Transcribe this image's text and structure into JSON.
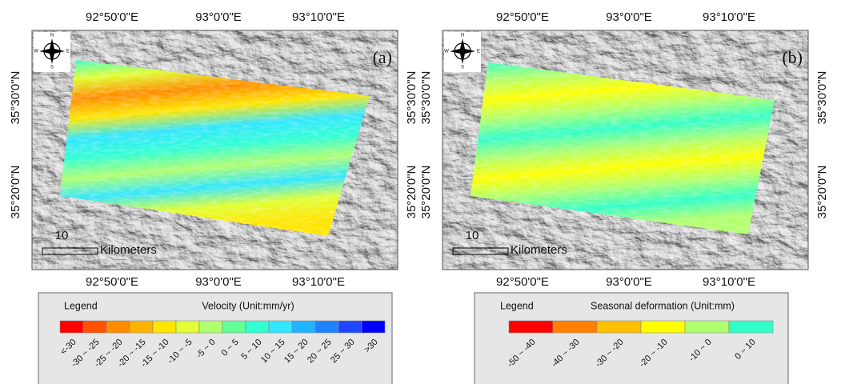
{
  "panels": [
    {
      "label": "(a)",
      "top_ticks": [
        "92°50'0\"E",
        "93°0'0\"E",
        "93°10'0\"E"
      ],
      "bottom_ticks": [
        "92°50'0\"E",
        "93°0'0\"E",
        "93°10'0\"E"
      ],
      "left_ticks": [
        "35°30'0\"N",
        "35°20'0\"N"
      ],
      "right_ticks": [
        "35°30'0\"N",
        "35°20'0\"N"
      ],
      "compass": [
        "N",
        "E",
        "S",
        "W"
      ],
      "scale_value": "10",
      "scale_unit": "Kilometers",
      "legend": {
        "heading": "Legend",
        "title": "Velocity (Unit:mm/yr)",
        "classes": [
          {
            "label": "<-30",
            "color": "#ff0000"
          },
          {
            "label": "-30 ~ -25",
            "color": "#ff5000"
          },
          {
            "label": "-25 ~ -20",
            "color": "#ff8c00"
          },
          {
            "label": "-20 ~ -15",
            "color": "#ffb400"
          },
          {
            "label": "-15 ~ -10",
            "color": "#ffe600"
          },
          {
            "label": "-10 ~ -5",
            "color": "#e1ff32"
          },
          {
            "label": "-5 ~ 0",
            "color": "#b0ff6e"
          },
          {
            "label": "0 ~ 5",
            "color": "#64ff96"
          },
          {
            "label": "5 ~ 10",
            "color": "#32ffd2"
          },
          {
            "label": "10 ~ 15",
            "color": "#32e6ff"
          },
          {
            "label": "15 ~ 20",
            "color": "#1eb4ff"
          },
          {
            "label": "20 ~ 25",
            "color": "#1e82ff"
          },
          {
            "label": "25 ~ 30",
            "color": "#1e46ff"
          },
          {
            "label": ">30",
            "color": "#0000ff"
          }
        ]
      }
    },
    {
      "label": "(b)",
      "top_ticks": [
        "92°50'0\"E",
        "93°0'0\"E",
        "93°10'0\"E"
      ],
      "bottom_ticks": [
        "92°50'0\"E",
        "93°0'0\"E",
        "93°10'0\"E"
      ],
      "left_ticks": [
        "35°30'0\"N",
        "35°20'0\"N"
      ],
      "right_ticks": [
        "35°30'0\"N",
        "35°20'0\"N"
      ],
      "compass": [
        "N",
        "E",
        "S",
        "W"
      ],
      "scale_value": "10",
      "scale_unit": "Kilometers",
      "legend": {
        "heading": "Legend",
        "title": "Seasonal deformation (Unit:mm)",
        "classes": [
          {
            "label": "-50 ~ -40",
            "color": "#ff0000"
          },
          {
            "label": "-40 ~ -30",
            "color": "#ff8000"
          },
          {
            "label": "-30 ~ -20",
            "color": "#ffc000"
          },
          {
            "label": "-20 ~ -10",
            "color": "#ffff00"
          },
          {
            "label": "-10 ~ 0",
            "color": "#b0ff6e"
          },
          {
            "label": "0 ~ 10",
            "color": "#32ffc8"
          }
        ]
      }
    }
  ]
}
